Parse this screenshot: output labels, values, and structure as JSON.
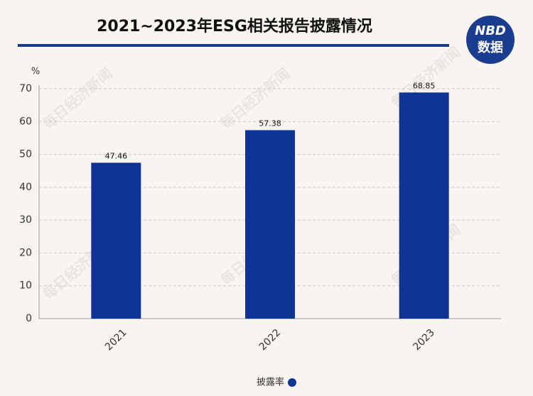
{
  "chart_data": {
    "type": "bar",
    "title": "2021~2023年ESG相关报告披露情况",
    "y_unit": "%",
    "categories": [
      "2021",
      "2022",
      "2023"
    ],
    "series": [
      {
        "name": "披露率",
        "color": "#0e3596",
        "values": [
          47.46,
          57.38,
          68.85
        ]
      }
    ],
    "ylim": [
      0,
      70
    ],
    "yticks": [
      0,
      10,
      20,
      30,
      40,
      50,
      60,
      70
    ],
    "grid": true,
    "legend": "bottom",
    "logo": {
      "text": "NBD",
      "subtext": "数据"
    },
    "watermark": "每日经济新闻"
  }
}
